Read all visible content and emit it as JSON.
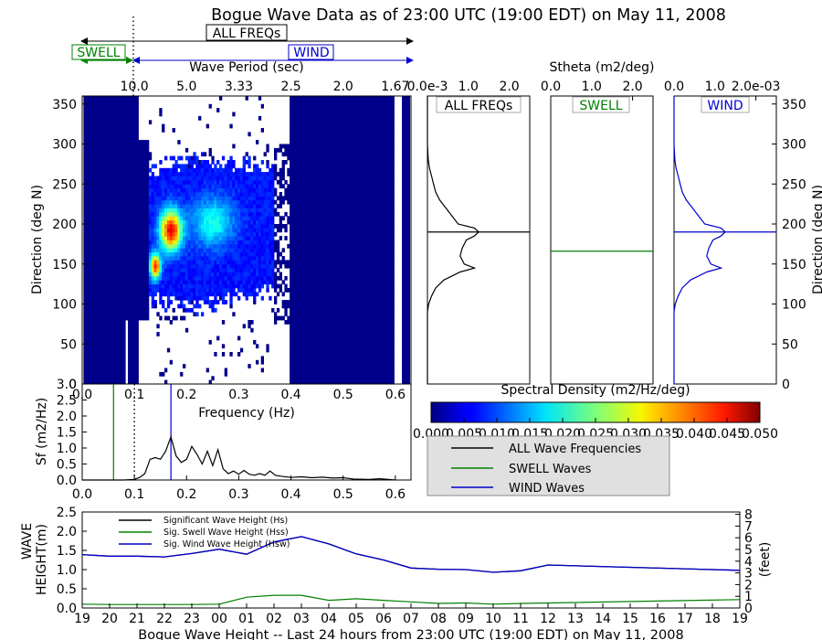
{
  "title": "Bogue Wave Data as of 23:00 UTC (19:00 EDT) on May 11, 2008",
  "bands": {
    "all_label": "ALL FREQs",
    "swell_label": "SWELL",
    "wind_label": "WIND",
    "swell_color": "#008000",
    "wind_color": "#0000cc"
  },
  "colors": {
    "all": "#000000",
    "swell": "#008000",
    "wind": "#0000cc",
    "spectrum_bg": "#00008b"
  },
  "chart_data": [
    {
      "type": "heatmap",
      "title": "",
      "top_axis_label": "Wave Period (sec)",
      "top_ticks": [
        "10.0",
        "5.0",
        "3.33",
        "2.5",
        "2.0",
        "1.67"
      ],
      "top_tick_freqs": [
        0.1,
        0.2,
        0.3,
        0.4,
        0.5,
        0.6
      ],
      "xlabel": "Frequency (Hz)",
      "ylabel": "Direction (deg N)",
      "xlim": [
        0.0,
        0.63
      ],
      "ylim": [
        0,
        360
      ],
      "xticks": [
        "0.0",
        "0.1",
        "0.2",
        "0.3",
        "0.4",
        "0.5",
        "0.6"
      ],
      "yticks": [
        "0",
        "50",
        "100",
        "150",
        "200",
        "250",
        "300",
        "350"
      ],
      "swell_freq": 0.06,
      "separation_freq": 0.1,
      "wind_freq": 0.17,
      "peak_direction": 190
    },
    {
      "type": "line",
      "panels": [
        "ALL FREQs",
        "SWELL",
        "WIND"
      ],
      "axis_label": "Stheta (m2/deg)",
      "all_ticks": [
        "0.0e-3",
        "1.0",
        "2.0"
      ],
      "swell_ticks": [
        "0.0",
        "1.0",
        "2.0"
      ],
      "wind_ticks": [
        "0.0",
        "1.0",
        "2.0e-03"
      ],
      "xlim": [
        0,
        0.0025
      ],
      "ylim": [
        0,
        360
      ],
      "right_ylabel": "Direction (deg N)",
      "right_yticks": [
        "0",
        "50",
        "100",
        "150",
        "200",
        "250",
        "300",
        "350"
      ],
      "directions": [
        0,
        90,
        100,
        110,
        120,
        130,
        140,
        145,
        150,
        160,
        170,
        180,
        185,
        190,
        195,
        200,
        210,
        220,
        230,
        240,
        250,
        260,
        270,
        280,
        300,
        360
      ],
      "all_values": [
        0,
        0,
        3e-05,
        0.0001,
        0.0002,
        0.0004,
        0.0008,
        0.00115,
        0.0009,
        0.0008,
        0.00085,
        0.00095,
        0.00115,
        0.00125,
        0.00115,
        0.00075,
        0.0006,
        0.00045,
        0.0003,
        0.0002,
        0.00015,
        0.0001,
        5e-05,
        2e-05,
        0,
        0
      ],
      "wind_values": [
        0,
        0,
        3e-05,
        0.0001,
        0.0002,
        0.0004,
        0.0008,
        0.00115,
        0.0009,
        0.0008,
        0.00085,
        0.00095,
        0.00115,
        0.00125,
        0.00115,
        0.00075,
        0.0006,
        0.00045,
        0.0003,
        0.0002,
        0.00015,
        0.0001,
        5e-05,
        2e-05,
        0,
        0
      ],
      "all_mean_dir": 190,
      "swell_mean_dir": 166,
      "wind_mean_dir": 190
    },
    {
      "type": "bar",
      "title": "Spectral Density (m2/Hz/deg)",
      "colorbar_ticks": [
        "0.000",
        "0.005",
        "0.010",
        "0.015",
        "0.020",
        "0.025",
        "0.030",
        "0.035",
        "0.040",
        "0.045",
        "0.050"
      ],
      "range": [
        0,
        0.05
      ]
    },
    {
      "type": "line",
      "xlabel": "Frequency (Hz)",
      "ylabel": "Sf (m2/Hz)",
      "xlim": [
        0.0,
        0.63
      ],
      "ylim": [
        0,
        3.0
      ],
      "xticks": [
        "0.0",
        "0.1",
        "0.2",
        "0.3",
        "0.4",
        "0.5",
        "0.6"
      ],
      "yticks": [
        "0.0",
        "0.5",
        "1.0",
        "1.5",
        "2.0",
        "2.5",
        "3.0"
      ],
      "x": [
        0.0,
        0.08,
        0.1,
        0.11,
        0.12,
        0.13,
        0.14,
        0.15,
        0.16,
        0.17,
        0.18,
        0.19,
        0.2,
        0.21,
        0.22,
        0.23,
        0.24,
        0.25,
        0.26,
        0.27,
        0.28,
        0.29,
        0.3,
        0.31,
        0.32,
        0.33,
        0.34,
        0.35,
        0.36,
        0.37,
        0.38,
        0.4,
        0.42,
        0.44,
        0.46,
        0.48,
        0.5,
        0.52,
        0.55,
        0.57,
        0.6
      ],
      "y": [
        0.0,
        0.0,
        0.02,
        0.08,
        0.2,
        0.65,
        0.7,
        0.65,
        0.9,
        1.35,
        0.75,
        0.55,
        0.65,
        1.05,
        0.8,
        0.5,
        0.9,
        0.45,
        0.95,
        0.35,
        0.2,
        0.28,
        0.18,
        0.3,
        0.18,
        0.15,
        0.2,
        0.15,
        0.28,
        0.15,
        0.12,
        0.08,
        0.1,
        0.07,
        0.09,
        0.06,
        0.07,
        0.03,
        0.02,
        0.04,
        0.0
      ],
      "swell_freq": 0.06,
      "separation_freq": 0.1,
      "wind_freq": 0.17
    },
    {
      "type": "line",
      "xlabel": "Bogue Wave Height -- Last 24 hours from 23:00 UTC (19:00 EDT) on May 11, 2008",
      "ylabel": "WAVE HEIGHT(m)",
      "ylabel_lines": [
        "WAVE",
        "HEIGHT(m)"
      ],
      "right_ylabel": "(feet)",
      "ylim": [
        0,
        2.5
      ],
      "yticks": [
        "0.0",
        "0.5",
        "1.0",
        "1.5",
        "2.0",
        "2.5"
      ],
      "right_yticks": [
        "0",
        "1",
        "2",
        "3",
        "4",
        "5",
        "6",
        "7",
        "8"
      ],
      "categories": [
        "19",
        "20",
        "21",
        "22",
        "23",
        "00",
        "01",
        "02",
        "03",
        "04",
        "05",
        "06",
        "07",
        "08",
        "09",
        "10",
        "11",
        "12",
        "13",
        "14",
        "15",
        "16",
        "17",
        "18",
        "19"
      ],
      "series": [
        {
          "name": "Significant Wave Height (Hs)",
          "x": [
            0,
            1,
            2,
            3,
            4,
            5,
            6,
            7,
            8,
            9,
            10,
            11,
            12,
            13,
            14,
            15,
            16,
            17,
            24
          ],
          "values": [
            1.39,
            1.35,
            1.35,
            1.33,
            1.42,
            1.53,
            1.4,
            1.72,
            1.86,
            1.67,
            1.41,
            1.25,
            1.04,
            1.01,
            1.0,
            0.93,
            0.97,
            1.12,
            0.98
          ]
        },
        {
          "name": "Sig. Swell Wave Height (Hss)",
          "x": [
            0,
            1,
            2,
            3,
            4,
            5,
            6,
            7,
            8,
            9,
            10,
            11,
            12,
            13,
            14,
            15,
            16,
            17,
            24
          ],
          "values": [
            0.1,
            0.09,
            0.09,
            0.09,
            0.09,
            0.1,
            0.28,
            0.33,
            0.33,
            0.2,
            0.24,
            0.2,
            0.16,
            0.12,
            0.13,
            0.1,
            0.12,
            0.13,
            0.22
          ]
        },
        {
          "name": "Sig. Wind Wave Height (Hsw)",
          "x": [
            0,
            1,
            2,
            3,
            4,
            5,
            6,
            7,
            8,
            9,
            10,
            11,
            12,
            13,
            14,
            15,
            16,
            17,
            24
          ],
          "values": [
            1.39,
            1.35,
            1.35,
            1.33,
            1.42,
            1.53,
            1.4,
            1.72,
            1.86,
            1.67,
            1.41,
            1.25,
            1.04,
            1.01,
            1.0,
            0.93,
            0.97,
            1.12,
            0.98
          ]
        }
      ]
    }
  ],
  "legend_main": {
    "items": [
      {
        "label": "ALL Wave Frequencies",
        "color": "#000000"
      },
      {
        "label": "SWELL Waves",
        "color": "#008000"
      },
      {
        "label": "WIND Waves",
        "color": "#0000cc"
      }
    ]
  }
}
